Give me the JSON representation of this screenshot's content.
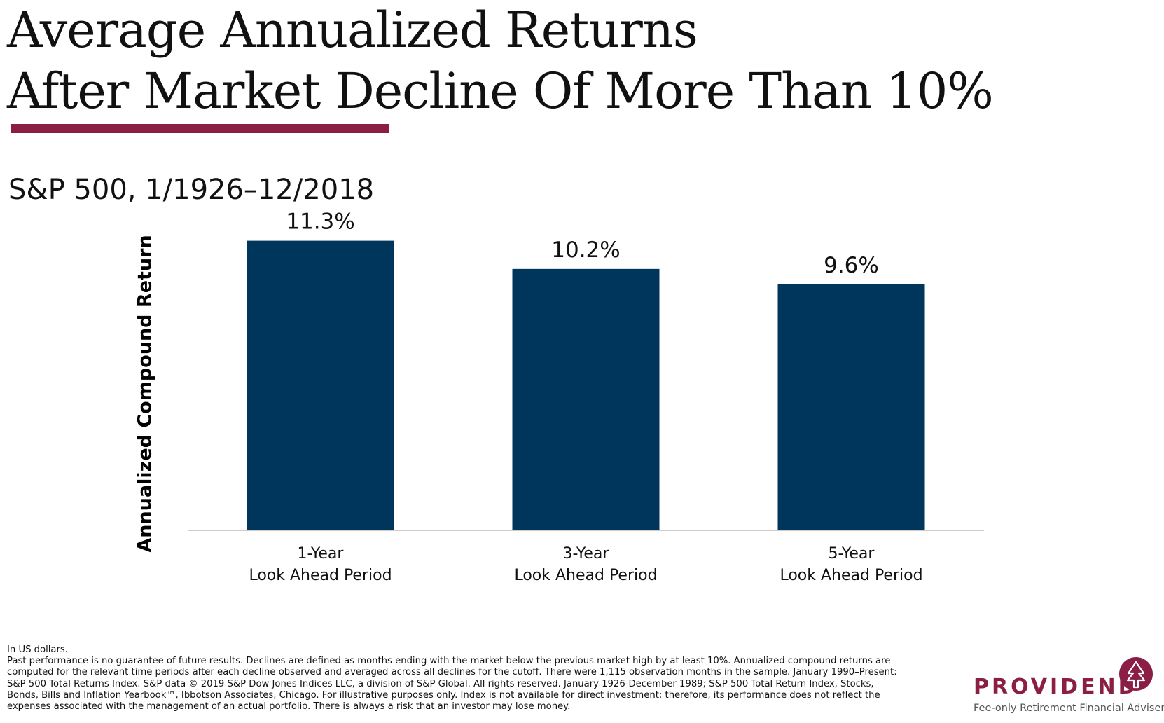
{
  "title_line1": "Average Annualized Returns",
  "title_line2": "After Market Decline Of More Than 10%",
  "subtitle": "S&P 500, 1/1926–12/2018",
  "colors": {
    "accent": "#8B1E45",
    "bar": "#00365B",
    "axis": "#C8B8B0"
  },
  "chart_data": {
    "type": "bar",
    "categories": [
      [
        "1-Year",
        "Look Ahead Period"
      ],
      [
        "3-Year",
        "Look Ahead Period"
      ],
      [
        "5-Year",
        "Look Ahead Period"
      ]
    ],
    "values": [
      11.3,
      10.2,
      9.6
    ],
    "data_labels": [
      "11.3%",
      "10.2%",
      "9.6%"
    ],
    "ylabel": "Annualized Compound Return",
    "ylim": [
      0,
      12
    ],
    "grid": false,
    "legend": "none"
  },
  "footnote": [
    "In US dollars.",
    "Past performance is no guarantee of future results. Declines are defined as months ending with the market below the previous market high by at least 10%. Annualized compound returns are",
    "computed for the relevant time periods after each decline observed and averaged across all declines for the cutoff. There were 1,115 observation months in the sample. January 1990–Present:",
    "S&P 500 Total Returns Index. S&P data © 2019 S&P Dow Jones Indices LLC, a division of S&P Global. All rights reserved. January 1926-December 1989; S&P 500 Total Return Index, Stocks,",
    "Bonds, Bills and Inflation Yearbook™, Ibbotson Associates, Chicago. For illustrative purposes only. Index is not available for direct investment; therefore, its performance does not reflect the",
    "expenses associated with the management of an actual portfolio. There is always a risk that an investor may lose money."
  ],
  "logo": {
    "wordmark": "PROVIDEND",
    "tagline": "Fee-only Retirement Financial Adviser",
    "icon": "tree-arrow-icon"
  }
}
